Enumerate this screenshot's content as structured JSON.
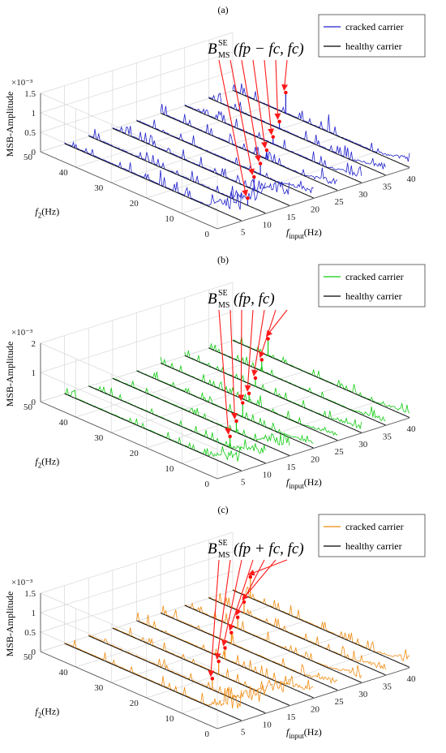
{
  "chart_data": [
    {
      "panel": "(a)",
      "type": "3d-line",
      "annotation": {
        "main": "B",
        "sup": "SE",
        "sub": "MS",
        "args": "(fp − fc, fc)"
      },
      "legend": [
        "cracked carrier",
        "healthy carrier"
      ],
      "colors": {
        "cracked": "#2020cc",
        "healthy": "#000000",
        "arrow": "#ff1a1a",
        "marker": "#ff0000"
      },
      "zlabel": "MSB-Amplitude",
      "zscale": "×10⁻³",
      "zticks": [
        "0",
        "0.5",
        "1",
        "1.5"
      ],
      "zmax": 1.5,
      "ylabel_main": "f",
      "ylabel_sub": "2",
      "ylabel_unit": "(Hz)",
      "yticks": [
        "0",
        "10",
        "20",
        "30",
        "40",
        "50"
      ],
      "xlabel_main": "f",
      "xlabel_sub": "input",
      "xlabel_unit": "(Hz)",
      "xticks": [
        "5",
        "10",
        "15",
        "20",
        "25",
        "30",
        "35",
        "40"
      ],
      "series_inputs": [
        5,
        10,
        15,
        20,
        25,
        30,
        35,
        40
      ],
      "marked_peaks": [
        {
          "input": 10,
          "f2": 5,
          "amp": 0.2
        },
        {
          "input": 15,
          "f2": 10,
          "amp": 0.35
        },
        {
          "input": 20,
          "f2": 15,
          "amp": 0.3
        },
        {
          "input": 25,
          "f2": 20,
          "amp": 0.25
        },
        {
          "input": 30,
          "f2": 25,
          "amp": 0.2
        },
        {
          "input": 35,
          "f2": 30,
          "amp": 0.2
        },
        {
          "input": 40,
          "f2": 35,
          "amp": 0.55
        }
      ]
    },
    {
      "panel": "(b)",
      "type": "3d-line",
      "annotation": {
        "main": "B",
        "sup": "SE",
        "sub": "MS",
        "args": "(fp, fc)"
      },
      "legend": [
        "cracked carrier",
        "healthy carrier"
      ],
      "colors": {
        "cracked": "#11cc11",
        "healthy": "#000000",
        "arrow": "#ff1a1a",
        "marker": "#ff0000"
      },
      "zlabel": "MSB-Amplitude",
      "zscale": "×10⁻³",
      "zticks": [
        "0",
        "1",
        "2"
      ],
      "zmax": 2,
      "ylabel_main": "f",
      "ylabel_sub": "2",
      "ylabel_unit": "(Hz)",
      "yticks": [
        "0",
        "10",
        "20",
        "30",
        "40",
        "50"
      ],
      "xlabel_main": "f",
      "xlabel_sub": "input",
      "xlabel_unit": "(Hz)",
      "xticks": [
        "5",
        "10",
        "15",
        "20",
        "25",
        "30",
        "35",
        "40"
      ],
      "series_inputs": [
        5,
        10,
        15,
        20,
        25,
        30,
        35,
        40
      ],
      "marked_peaks": [
        {
          "input": 10,
          "f2": 10,
          "amp": 0.4
        },
        {
          "input": 15,
          "f2": 15,
          "amp": 0.4
        },
        {
          "input": 20,
          "f2": 20,
          "amp": 0.5
        },
        {
          "input": 25,
          "f2": 25,
          "amp": 0.3
        },
        {
          "input": 30,
          "f2": 30,
          "amp": 0.3
        },
        {
          "input": 35,
          "f2": 35,
          "amp": 0.4
        },
        {
          "input": 40,
          "f2": 40,
          "amp": 0.6
        }
      ]
    },
    {
      "panel": "(c)",
      "type": "3d-line",
      "annotation": {
        "main": "B",
        "sup": "SE",
        "sub": "MS",
        "args": "(fp + fc, fc)"
      },
      "legend": [
        "cracked carrier",
        "healthy carrier"
      ],
      "colors": {
        "cracked": "#f08c10",
        "healthy": "#000000",
        "arrow": "#ff1a1a",
        "marker": "#ff0000"
      },
      "zlabel": "MSB-Amplitude",
      "zscale": "×10⁻³",
      "zticks": [
        "0",
        "0.5",
        "1",
        "1.5"
      ],
      "zmax": 1.5,
      "ylabel_main": "f",
      "ylabel_sub": "2",
      "ylabel_unit": "(Hz)",
      "yticks": [
        "0",
        "10",
        "20",
        "30",
        "40",
        "50"
      ],
      "xlabel_main": "f",
      "xlabel_sub": "input",
      "xlabel_unit": "(Hz)",
      "xticks": [
        "5",
        "10",
        "15",
        "20",
        "25",
        "30",
        "35",
        "40"
      ],
      "series_inputs": [
        5,
        10,
        15,
        20,
        25,
        30,
        35,
        40
      ],
      "marked_peaks": [
        {
          "input": 10,
          "f2": 15,
          "amp": 0.3
        },
        {
          "input": 15,
          "f2": 20,
          "amp": 0.35
        },
        {
          "input": 20,
          "f2": 25,
          "amp": 0.3
        },
        {
          "input": 25,
          "f2": 30,
          "amp": 0.3
        },
        {
          "input": 30,
          "f2": 35,
          "amp": 0.3
        },
        {
          "input": 35,
          "f2": 40,
          "amp": 0.3
        },
        {
          "input": 40,
          "f2": 45,
          "amp": 0.55
        }
      ]
    }
  ]
}
